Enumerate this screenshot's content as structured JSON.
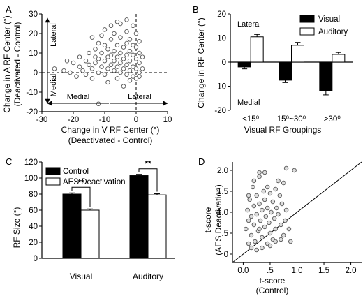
{
  "chart_data": [
    {
      "panel": "A",
      "type": "scatter",
      "xlabel": "Change in V RF Center (°)",
      "xlabel2": "(Deactivated - Control)",
      "ylabel": "Change in A RF Center (°)",
      "ylabel2": "(Deactivated - Control)",
      "xlim": [
        -30,
        10
      ],
      "ylim": [
        -20,
        30
      ],
      "xticks": [
        "-30",
        "-20",
        "-10",
        "0",
        "10"
      ],
      "yticks": [
        "-20",
        "-10",
        "0",
        "10",
        "20",
        "30"
      ],
      "annotations": {
        "x_medial": "Medial",
        "x_lateral": "Lateral",
        "y_lateral": "Lateral",
        "y_medial": "Medial"
      },
      "points": [
        [
          -22,
          6
        ],
        [
          -23,
          1
        ],
        [
          -21,
          0
        ],
        [
          -20,
          5
        ],
        [
          -19,
          -2
        ],
        [
          -18,
          3
        ],
        [
          -18,
          8
        ],
        [
          -17,
          1
        ],
        [
          -16,
          6
        ],
        [
          -16,
          -1
        ],
        [
          -15,
          10
        ],
        [
          -15,
          4
        ],
        [
          -14,
          2
        ],
        [
          -14,
          -3
        ],
        [
          -13,
          8
        ],
        [
          -13,
          12
        ],
        [
          -13,
          5
        ],
        [
          -12,
          15
        ],
        [
          -12,
          0
        ],
        [
          -12,
          7
        ],
        [
          -11,
          19
        ],
        [
          -11,
          10
        ],
        [
          -11,
          3
        ],
        [
          -10,
          22
        ],
        [
          -10,
          14
        ],
        [
          -10,
          6
        ],
        [
          -10,
          -1
        ],
        [
          -9,
          12
        ],
        [
          -9,
          8
        ],
        [
          -9,
          2
        ],
        [
          -9,
          -5
        ],
        [
          -8,
          24
        ],
        [
          -8,
          17
        ],
        [
          -8,
          9
        ],
        [
          -8,
          4
        ],
        [
          -7,
          11
        ],
        [
          -7,
          6
        ],
        [
          -7,
          1
        ],
        [
          -7,
          20
        ],
        [
          -6,
          14
        ],
        [
          -6,
          8
        ],
        [
          -6,
          3
        ],
        [
          -6,
          -3
        ],
        [
          -5,
          25
        ],
        [
          -5,
          18
        ],
        [
          -5,
          10
        ],
        [
          -5,
          5
        ],
        [
          -5,
          0
        ],
        [
          -4,
          13
        ],
        [
          -4,
          7
        ],
        [
          -4,
          2
        ],
        [
          -4,
          -7
        ],
        [
          -3,
          21
        ],
        [
          -3,
          15
        ],
        [
          -3,
          9
        ],
        [
          -3,
          4
        ],
        [
          -3,
          -1
        ],
        [
          -2,
          17
        ],
        [
          -2,
          11
        ],
        [
          -2,
          6
        ],
        [
          -2,
          1
        ],
        [
          -2,
          -4
        ],
        [
          -1,
          24
        ],
        [
          -1,
          14
        ],
        [
          -1,
          9
        ],
        [
          -1,
          3
        ],
        [
          -1,
          -2
        ],
        [
          0,
          20
        ],
        [
          0,
          13
        ],
        [
          0,
          7
        ],
        [
          0,
          2
        ],
        [
          0,
          -3
        ],
        [
          1,
          16
        ],
        [
          1,
          10
        ],
        [
          1,
          5
        ],
        [
          1,
          0
        ],
        [
          1,
          -2
        ],
        [
          2,
          8
        ],
        [
          2,
          2
        ],
        [
          -12,
          -16
        ],
        [
          -26,
          2
        ],
        [
          -14,
          18
        ],
        [
          -6,
          26
        ],
        [
          -3,
          27
        ]
      ]
    },
    {
      "panel": "B",
      "type": "bar",
      "categories": [
        "<15⁰",
        "15⁰~30⁰",
        ">30⁰"
      ],
      "series": [
        {
          "name": "Visual",
          "values": [
            -2,
            -7.5,
            -12
          ],
          "errors": [
            0.8,
            1.0,
            1.6
          ]
        },
        {
          "name": "Auditory",
          "values": [
            10.5,
            7,
            3.2
          ],
          "errors": [
            1.0,
            1.2,
            0.8
          ]
        }
      ],
      "xlabel": "Visual RF Groupings",
      "ylabel": "Change in RF Center (°)",
      "ylim": [
        -20,
        20
      ],
      "yticks": [
        "-20",
        "-10",
        "0",
        "10",
        "20"
      ],
      "annotations": {
        "top": "Lateral",
        "bottom": "Medial"
      },
      "legend": "top-right"
    },
    {
      "panel": "C",
      "type": "bar",
      "categories": [
        "Visual",
        "Auditory"
      ],
      "series": [
        {
          "name": "Control",
          "values": [
            80,
            103
          ],
          "errors": [
            1.5,
            1.6
          ]
        },
        {
          "name": "AES Deactivation",
          "values": [
            60,
            79
          ],
          "errors": [
            1.5,
            1.4
          ]
        }
      ],
      "ylabel": "RF Size (°)",
      "ylim": [
        0,
        120
      ],
      "yticks": [
        "0",
        "20",
        "40",
        "60",
        "80",
        "100",
        "120"
      ],
      "significance": [
        "**",
        "**"
      ],
      "legend": "top-left"
    },
    {
      "panel": "D",
      "type": "scatter",
      "xlabel": "t-score",
      "xlabel2": "(Control)",
      "ylabel": "t-score",
      "ylabel2": "(AES Deactivation)",
      "xlim": [
        -0.2,
        2.2
      ],
      "ylim": [
        -0.2,
        2.2
      ],
      "xticks": [
        "0.0",
        ".5",
        "1.0",
        "1.5",
        "2.0"
      ],
      "yticks": [
        "0",
        ".5",
        "1.0",
        "1.5",
        "2.0"
      ],
      "unity_line": true,
      "points": [
        [
          0.05,
          0.6
        ],
        [
          0.08,
          1.05
        ],
        [
          0.1,
          0.8
        ],
        [
          0.12,
          1.3
        ],
        [
          0.15,
          0.9
        ],
        [
          0.15,
          0.45
        ],
        [
          0.18,
          1.6
        ],
        [
          0.2,
          1.15
        ],
        [
          0.2,
          0.7
        ],
        [
          0.22,
          0.3
        ],
        [
          0.25,
          1.4
        ],
        [
          0.25,
          0.95
        ],
        [
          0.28,
          0.55
        ],
        [
          0.3,
          1.85
        ],
        [
          0.3,
          1.2
        ],
        [
          0.32,
          0.8
        ],
        [
          0.35,
          1.05
        ],
        [
          0.35,
          0.4
        ],
        [
          0.38,
          1.5
        ],
        [
          0.4,
          0.65
        ],
        [
          0.4,
          1.3
        ],
        [
          0.42,
          0.9
        ],
        [
          0.45,
          0.25
        ],
        [
          0.45,
          1.1
        ],
        [
          0.48,
          0.75
        ],
        [
          0.5,
          1.45
        ],
        [
          0.5,
          0.5
        ],
        [
          0.52,
          1.0
        ],
        [
          0.55,
          1.25
        ],
        [
          0.55,
          0.35
        ],
        [
          0.58,
          0.85
        ],
        [
          0.6,
          1.55
        ],
        [
          0.6,
          0.6
        ],
        [
          0.62,
          1.1
        ],
        [
          0.65,
          0.95
        ],
        [
          0.68,
          1.4
        ],
        [
          0.7,
          0.7
        ],
        [
          0.72,
          1.2
        ],
        [
          0.75,
          0.45
        ],
        [
          0.75,
          1.7
        ],
        [
          0.78,
          0.8
        ],
        [
          0.8,
          1.05
        ],
        [
          0.85,
          0.6
        ],
        [
          0.88,
          0.3
        ],
        [
          0.95,
          2.0
        ],
        [
          0.25,
          0.1
        ],
        [
          0.15,
          0.15
        ],
        [
          0.35,
          0.15
        ],
        [
          0.5,
          0.2
        ],
        [
          0.6,
          0.3
        ],
        [
          0.7,
          0.35
        ],
        [
          0.3,
          1.95
        ],
        [
          0.1,
          1.4
        ],
        [
          0.2,
          1.75
        ],
        [
          0.45,
          1.6
        ],
        [
          0.65,
          1.75
        ],
        [
          0.8,
          2.05
        ],
        [
          0.4,
          1.95
        ],
        [
          0.1,
          0.25
        ],
        [
          0.3,
          0.6
        ]
      ]
    }
  ]
}
